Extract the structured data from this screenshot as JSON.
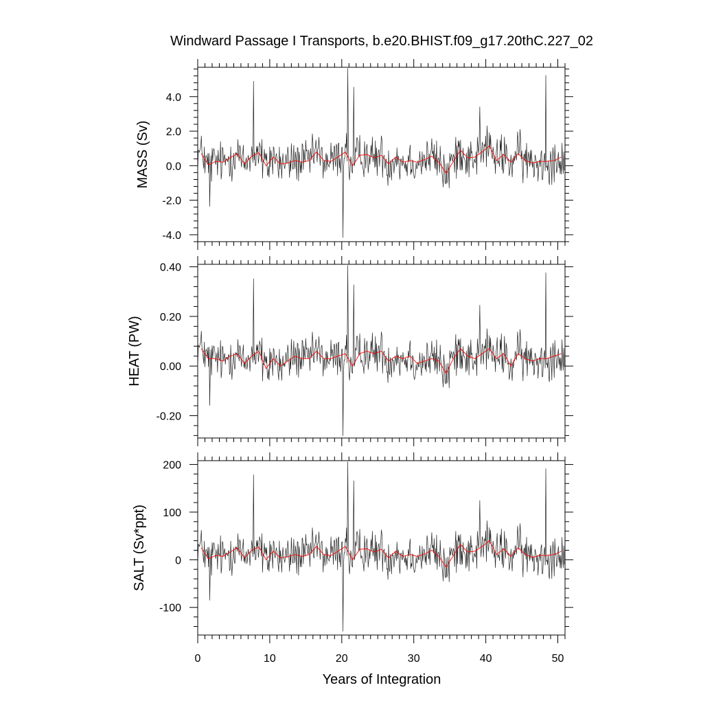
{
  "chart_data": {
    "type": "line",
    "title": "Windward Passage I Transports, b.e20.BHIST.f09_g17.20thC.227_02",
    "xlabel": "Years of Integration",
    "xlim": [
      0,
      51
    ],
    "x_ticks": [
      0,
      10,
      20,
      30,
      40,
      50
    ],
    "x_tick_labels": [
      "0",
      "10",
      "20",
      "30",
      "40",
      "50"
    ],
    "grid": false,
    "legend": "none",
    "colors": {
      "monthly": "#222222",
      "annual": "#ff0000"
    },
    "panels": [
      {
        "ylabel": "MASS (Sv)",
        "ylim": [
          -4.4,
          5.7
        ],
        "y_ticks": [
          -4,
          -2,
          0,
          2,
          4
        ],
        "y_tick_labels": [
          "-4.0",
          "-2.0",
          "0.0",
          "2.0",
          "4.0"
        ],
        "annual_mean": [
          0.7,
          0.05,
          0.25,
          0.2,
          0.45,
          0.7,
          0.1,
          0.55,
          0.75,
          0.0,
          0.5,
          0.1,
          0.15,
          0.3,
          0.2,
          0.3,
          0.8,
          0.3,
          0.25,
          0.5,
          0.8,
          0.0,
          0.6,
          0.65,
          0.45,
          0.6,
          0.1,
          0.5,
          0.2,
          0.3,
          0.2,
          0.35,
          0.55,
          0.2,
          -0.45,
          0.25,
          0.9,
          0.45,
          0.5,
          0.8,
          1.15,
          0.3,
          0.65,
          0.2,
          0.7,
          0.3,
          0.15,
          0.25,
          0.25,
          0.3,
          0.5
        ],
        "monthly_range": [
          -4.3,
          5.7
        ]
      },
      {
        "ylabel": "HEAT (PW)",
        "ylim": [
          -0.29,
          0.41
        ],
        "y_ticks": [
          -0.2,
          0,
          0.2,
          0.4
        ],
        "y_tick_labels": [
          "-0.20",
          "0.00",
          "0.20",
          "0.40"
        ],
        "annual_mean": [
          0.07,
          0.03,
          0.03,
          0.02,
          0.04,
          0.05,
          0.01,
          0.04,
          0.06,
          -0.01,
          0.03,
          0.0,
          0.02,
          0.04,
          0.03,
          0.03,
          0.06,
          0.03,
          0.03,
          0.04,
          0.05,
          0.0,
          0.05,
          0.06,
          0.05,
          0.06,
          0.02,
          0.04,
          0.03,
          0.04,
          0.01,
          0.02,
          0.03,
          0.02,
          -0.03,
          0.03,
          0.07,
          0.04,
          0.03,
          0.05,
          0.07,
          0.03,
          0.05,
          0.0,
          0.05,
          0.03,
          0.02,
          0.03,
          0.03,
          0.04,
          0.05
        ],
        "monthly_range": [
          -0.29,
          0.41
        ]
      },
      {
        "ylabel": "SALT (Sv*ppt)",
        "ylim": [
          -158,
          208
        ],
        "y_ticks": [
          -100,
          0,
          100,
          200
        ],
        "y_tick_labels": [
          "-100",
          "0",
          "100",
          "200"
        ],
        "annual_mean": [
          25,
          2,
          9,
          7,
          16,
          25,
          4,
          20,
          27,
          0,
          18,
          4,
          6,
          11,
          7,
          11,
          28,
          11,
          9,
          18,
          28,
          0,
          22,
          23,
          16,
          22,
          4,
          18,
          7,
          11,
          7,
          12,
          20,
          7,
          -16,
          9,
          32,
          16,
          18,
          28,
          40,
          11,
          23,
          7,
          25,
          11,
          5,
          9,
          9,
          11,
          18
        ],
        "monthly_range": [
          -155,
          208
        ]
      }
    ]
  }
}
